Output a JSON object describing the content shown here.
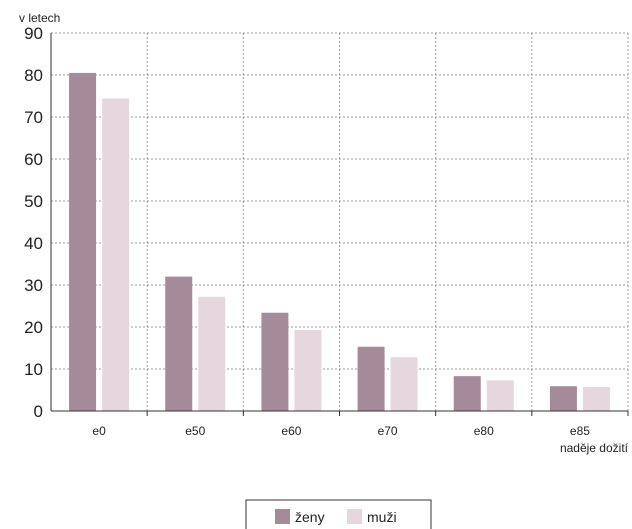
{
  "chart_data": {
    "type": "bar",
    "categories": [
      "e0",
      "e50",
      "e60",
      "e70",
      "e80",
      "e85"
    ],
    "series": [
      {
        "name": "ženy",
        "values": [
          80.5,
          32.0,
          23.4,
          15.3,
          8.3,
          5.9
        ],
        "color": "#a58b9a"
      },
      {
        "name": "muži",
        "values": [
          74.4,
          27.2,
          19.3,
          12.8,
          7.3,
          5.7
        ],
        "color": "#e6d7de"
      }
    ],
    "ylabel": "v letech",
    "xlabel": "naděje dožití",
    "ylim": [
      0,
      90
    ],
    "yticks": [
      0,
      10,
      20,
      30,
      40,
      50,
      60,
      70,
      80,
      90
    ],
    "grid": true,
    "legend_position": "bottom-center"
  }
}
